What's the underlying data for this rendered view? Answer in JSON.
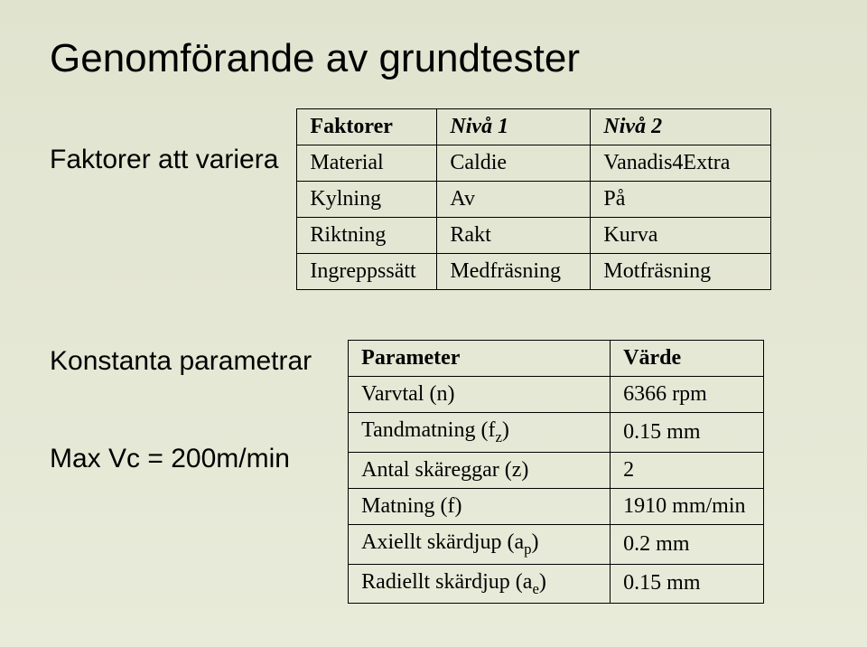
{
  "title": "Genomförande av grundtester",
  "section1": {
    "heading": "Faktorer att variera",
    "table": {
      "header": [
        "Faktorer",
        "Nivå 1",
        "Nivå 2"
      ],
      "rows": [
        [
          "Material",
          "Caldie",
          "Vanadis4Extra"
        ],
        [
          "Kylning",
          "Av",
          "På"
        ],
        [
          "Riktning",
          "Rakt",
          "Kurva"
        ],
        [
          "Ingreppssätt",
          "Medfräsning",
          "Motfräsning"
        ]
      ]
    }
  },
  "section2": {
    "heading": "Konstanta parametrar",
    "sub_line": "Max Vc = 200m/min",
    "table": {
      "header": [
        "Parameter",
        "Värde"
      ],
      "rows": [
        {
          "label": "Varvtal (n)",
          "value": "6366 rpm"
        },
        {
          "label_html": "Tandmatning (f<sub>z</sub>)",
          "value": "0.15 mm"
        },
        {
          "label": "Antal skäreggar (z)",
          "value": "2"
        },
        {
          "label": "Matning (f)",
          "value": "1910 mm/min"
        },
        {
          "label_html": "Axiellt skärdjup (a<sub>p</sub>)",
          "value": "0.2 mm"
        },
        {
          "label_html": "Radiellt skärdjup (a<sub>e</sub>)",
          "value": "0.15 mm"
        }
      ]
    }
  }
}
